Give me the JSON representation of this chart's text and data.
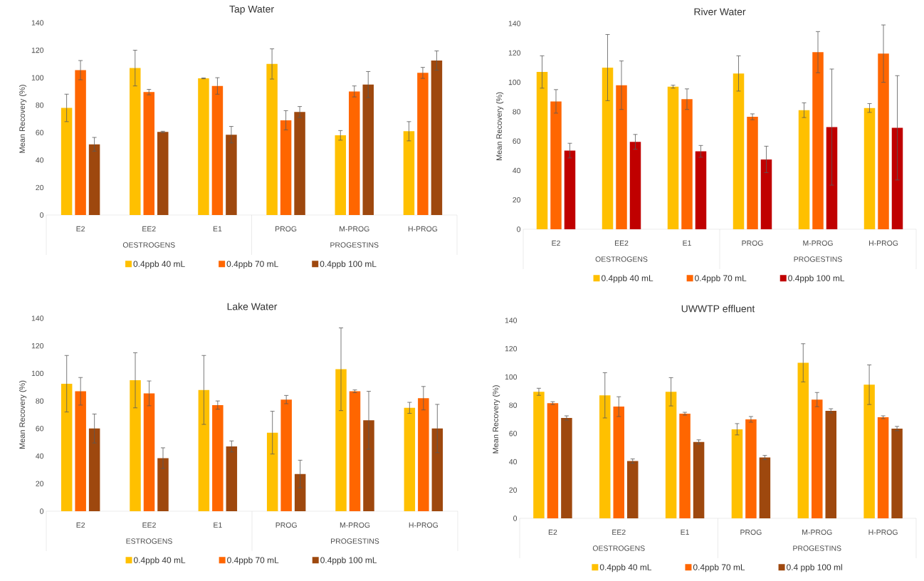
{
  "chart_data": [
    {
      "type": "bar",
      "title": "Tap Water",
      "ylabel": "Mean Recovery (%)",
      "categories": [
        "E2",
        "EE2",
        "E1",
        "PROG",
        "M-PROG",
        "H-PROG"
      ],
      "annotations": [
        "OESTROGENS",
        "PROGESTINS"
      ],
      "ylim": [
        0,
        140
      ],
      "yticks": [
        0,
        20,
        40,
        60,
        80,
        100,
        120,
        140
      ],
      "legend": "bottom",
      "series": [
        {
          "name": "0.4ppb 40 mL",
          "color": "#ffc000",
          "values": [
            78,
            107,
            99.5,
            110,
            58,
            61
          ],
          "errors": [
            10,
            13,
            0.3,
            11,
            3.5,
            7
          ]
        },
        {
          "name": "0.4ppb 70 mL",
          "color": "#ff6600",
          "values": [
            105.5,
            89.5,
            94,
            69,
            90,
            103.5
          ],
          "errors": [
            7,
            2,
            6,
            7,
            4,
            4
          ]
        },
        {
          "name": "0.4ppb 100 mL",
          "color": "#9e480e",
          "values": [
            51.5,
            60.5,
            58.5,
            75,
            95,
            112.5
          ],
          "errors": [
            5,
            0.5,
            6,
            4,
            9.5,
            7
          ]
        }
      ]
    },
    {
      "type": "bar",
      "title": "River Water",
      "ylabel": "Mean Recovery (%)",
      "categories": [
        "E2",
        "EE2",
        "E1",
        "PROG",
        "M-PROG",
        "H-PROG"
      ],
      "annotations": [
        "OESTROGENS",
        "PROGESTINS"
      ],
      "ylim": [
        0,
        140
      ],
      "yticks": [
        0,
        20,
        40,
        60,
        80,
        100,
        120,
        140
      ],
      "legend": "bottom",
      "series": [
        {
          "name": "0.4ppb 40 mL",
          "color": "#ffc000",
          "values": [
            107,
            110,
            97,
            106,
            81,
            82.5
          ],
          "errors": [
            11,
            22.5,
            1,
            12,
            5,
            3
          ]
        },
        {
          "name": "0.4ppb 70 mL",
          "color": "#ff6600",
          "values": [
            87,
            98,
            88.5,
            76.5,
            120.5,
            119.5
          ],
          "errors": [
            8,
            16.5,
            7,
            2,
            14,
            19.5
          ]
        },
        {
          "name": "0.4ppb 100 mL",
          "color": "#c00000",
          "values": [
            53.5,
            59.5,
            53,
            47.5,
            69.5,
            69
          ],
          "errors": [
            5,
            5,
            4,
            9,
            39.5,
            35.5
          ]
        }
      ]
    },
    {
      "type": "bar",
      "title": "Lake Water",
      "ylabel": "Mean Recovery (%)",
      "categories": [
        "E2",
        "EE2",
        "E1",
        "PROG",
        "M-PROG",
        "H-PROG"
      ],
      "annotations": [
        "ESTROGENS",
        "PROGESTINS"
      ],
      "ylim": [
        0,
        140
      ],
      "yticks": [
        0,
        20,
        40,
        60,
        80,
        100,
        120,
        140
      ],
      "legend": "bottom",
      "series": [
        {
          "name": "0.4ppb 40 mL",
          "color": "#ffc000",
          "values": [
            92.5,
            95,
            88,
            57,
            103,
            75
          ],
          "errors": [
            20.5,
            20,
            25,
            15.5,
            30,
            4
          ]
        },
        {
          "name": "0.4ppb 70 mL",
          "color": "#ff6600",
          "values": [
            87,
            85.5,
            77,
            81,
            87,
            82
          ],
          "errors": [
            10,
            9,
            3,
            3,
            1,
            8.5
          ]
        },
        {
          "name": "0.4ppb 100 mL",
          "color": "#9e480e",
          "values": [
            60,
            38.5,
            47,
            27,
            66,
            60
          ],
          "errors": [
            10.5,
            7.5,
            4,
            10,
            21,
            17.5
          ]
        }
      ]
    },
    {
      "type": "bar",
      "title": "UWWTP effluent",
      "ylabel": "Mean Recovery (%)",
      "categories": [
        "E2",
        "EE2",
        "E1",
        "PROG",
        "M-PROG",
        "H-PROG"
      ],
      "annotations": [
        "OESTROGENS",
        "PROGESTINS"
      ],
      "ylim": [
        0,
        140
      ],
      "yticks": [
        0,
        20,
        40,
        60,
        80,
        100,
        120,
        140
      ],
      "legend": "bottom",
      "series": [
        {
          "name": "0.4ppb 40 mL",
          "color": "#ffc000",
          "values": [
            89.5,
            87,
            89.5,
            63,
            110,
            94.5
          ],
          "errors": [
            2.5,
            16,
            10,
            4,
            13.5,
            14
          ]
        },
        {
          "name": "0.4ppb 70 mL",
          "color": "#ff6600",
          "values": [
            81.5,
            79,
            74,
            70,
            84,
            71.5
          ],
          "errors": [
            1,
            7,
            1,
            2,
            5,
            1
          ]
        },
        {
          "name": "0.4 ppb 100 ml",
          "color": "#9e480e",
          "values": [
            71,
            40.5,
            54,
            43,
            76,
            63.5
          ],
          "errors": [
            1.5,
            1.5,
            1.5,
            1.5,
            1.5,
            1.5
          ]
        }
      ]
    }
  ]
}
